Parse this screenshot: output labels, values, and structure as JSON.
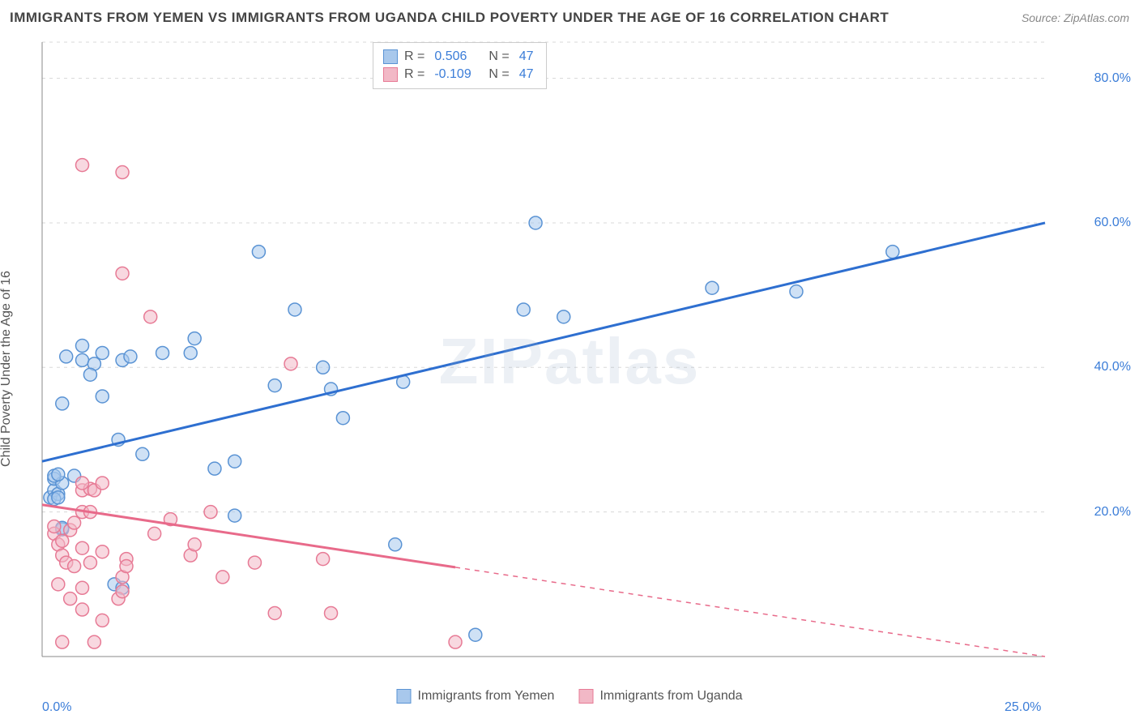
{
  "header": {
    "title": "IMMIGRANTS FROM YEMEN VS IMMIGRANTS FROM UGANDA CHILD POVERTY UNDER THE AGE OF 16 CORRELATION CHART",
    "source": "Source: ZipAtlas.com"
  },
  "ylabel": "Child Poverty Under the Age of 16",
  "watermark": "ZIPatlas",
  "chart": {
    "type": "scatter-with-regression",
    "xlim": [
      0,
      25
    ],
    "ylim": [
      0,
      85
    ],
    "xtick_labels": [
      {
        "pos": 0,
        "label": "0.0%"
      },
      {
        "pos": 25,
        "label": "25.0%"
      }
    ],
    "ytick_labels": [
      {
        "pos": 20,
        "label": "20.0%"
      },
      {
        "pos": 40,
        "label": "40.0%"
      },
      {
        "pos": 60,
        "label": "60.0%"
      },
      {
        "pos": 80,
        "label": "80.0%"
      }
    ],
    "grid_color": "#d8d8d8",
    "axis_color": "#888",
    "background": "#ffffff",
    "marker_radius": 8,
    "marker_opacity": 0.55,
    "line_width": 3,
    "series": [
      {
        "name": "Immigrants from Yemen",
        "color_fill": "#a8c8ec",
        "color_stroke": "#5a93d4",
        "line_color": "#2e6fd0",
        "r": "0.506",
        "n": "47",
        "regression": {
          "x1": 0,
          "y1": 27,
          "x2": 25,
          "y2": 60,
          "solid_until": 25
        },
        "points": [
          [
            0.2,
            22
          ],
          [
            0.3,
            23
          ],
          [
            0.3,
            24.6
          ],
          [
            0.4,
            22.5
          ],
          [
            0.5,
            24
          ],
          [
            0.8,
            25
          ],
          [
            0.5,
            35
          ],
          [
            1.0,
            41
          ],
          [
            1.3,
            40.5
          ],
          [
            1.5,
            42
          ],
          [
            1.5,
            36
          ],
          [
            2.0,
            41
          ],
          [
            2.2,
            41.5
          ],
          [
            1.0,
            43
          ],
          [
            1.9,
            30
          ],
          [
            2.5,
            28
          ],
          [
            3.0,
            42
          ],
          [
            3.7,
            42
          ],
          [
            3.8,
            44
          ],
          [
            4.3,
            26
          ],
          [
            4.8,
            27
          ],
          [
            5.4,
            56
          ],
          [
            5.8,
            37.5
          ],
          [
            6.3,
            48
          ],
          [
            7.0,
            40
          ],
          [
            7.2,
            37
          ],
          [
            7.5,
            33
          ],
          [
            8.8,
            15.5
          ],
          [
            9.0,
            38
          ],
          [
            10.8,
            3
          ],
          [
            12.0,
            48
          ],
          [
            12.3,
            60
          ],
          [
            13.0,
            47
          ],
          [
            16.7,
            51
          ],
          [
            18.8,
            50.5
          ],
          [
            21.2,
            56
          ],
          [
            1.8,
            10
          ],
          [
            2.0,
            9.5
          ],
          [
            4.8,
            19.5
          ],
          [
            0.5,
            17.6
          ],
          [
            0.5,
            17.8
          ],
          [
            0.3,
            21.8
          ],
          [
            0.4,
            22.0
          ],
          [
            0.3,
            25.0
          ],
          [
            0.4,
            25.2
          ],
          [
            1.2,
            39
          ],
          [
            0.6,
            41.5
          ]
        ]
      },
      {
        "name": "Immigrants from Uganda",
        "color_fill": "#f2b8c6",
        "color_stroke": "#e77a95",
        "line_color": "#e86a8a",
        "r": "-0.109",
        "n": "47",
        "regression": {
          "x1": 0,
          "y1": 21,
          "x2": 25,
          "y2": 0,
          "solid_until": 10.3
        },
        "points": [
          [
            0.3,
            17
          ],
          [
            0.3,
            18
          ],
          [
            0.4,
            15.5
          ],
          [
            0.5,
            16
          ],
          [
            0.5,
            14
          ],
          [
            0.7,
            17.5
          ],
          [
            0.8,
            18.5
          ],
          [
            0.6,
            13
          ],
          [
            0.8,
            12.5
          ],
          [
            1.0,
            15
          ],
          [
            1.0,
            20
          ],
          [
            1.2,
            20
          ],
          [
            1.0,
            23
          ],
          [
            1.2,
            23.2
          ],
          [
            1.0,
            24
          ],
          [
            1.3,
            23
          ],
          [
            1.5,
            24
          ],
          [
            0.4,
            10
          ],
          [
            0.5,
            2
          ],
          [
            0.7,
            8
          ],
          [
            1.0,
            68
          ],
          [
            1.0,
            9.5
          ],
          [
            1.3,
            2
          ],
          [
            1.2,
            13
          ],
          [
            1.5,
            14.5
          ],
          [
            1.9,
            8
          ],
          [
            2.0,
            9
          ],
          [
            2.0,
            11
          ],
          [
            2.0,
            53
          ],
          [
            2.0,
            67
          ],
          [
            2.7,
            47
          ],
          [
            2.1,
            13.5
          ],
          [
            2.1,
            12.5
          ],
          [
            2.8,
            17
          ],
          [
            3.2,
            19
          ],
          [
            3.7,
            14
          ],
          [
            3.8,
            15.5
          ],
          [
            4.2,
            20
          ],
          [
            4.5,
            11
          ],
          [
            5.3,
            13
          ],
          [
            5.8,
            6
          ],
          [
            6.2,
            40.5
          ],
          [
            7.0,
            13.5
          ],
          [
            7.2,
            6
          ],
          [
            10.3,
            2
          ],
          [
            1.5,
            5
          ],
          [
            1.0,
            6.5
          ]
        ]
      }
    ]
  },
  "legend_top": {
    "label_r": "R =",
    "label_n": "N ="
  },
  "legend_bottom": [
    {
      "label": "Immigrants from Yemen",
      "fill": "#a8c8ec",
      "stroke": "#5a93d4"
    },
    {
      "label": "Immigrants from Uganda",
      "fill": "#f2b8c6",
      "stroke": "#e77a95"
    }
  ]
}
